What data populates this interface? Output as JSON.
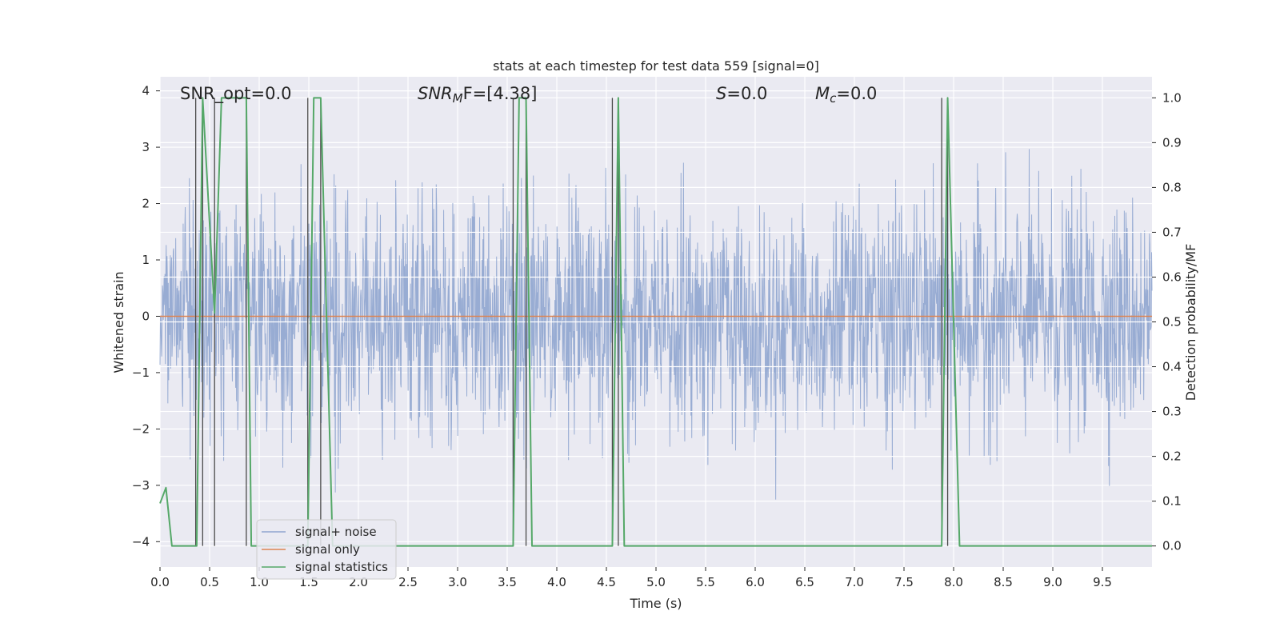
{
  "chart_data": {
    "type": "line",
    "title": "stats at each timestep for test data 559 [signal=0]",
    "xlabel": "Time (s)",
    "ylabel": "Whitened strain",
    "ylabel_right": "Detection probability/MF",
    "xlim": [
      0.0,
      10.0
    ],
    "ylim": [
      -4.45,
      4.25
    ],
    "ylim_right": [
      -0.047,
      1.047
    ],
    "x_ticks": [
      "0.0",
      "0.5",
      "1.0",
      "1.5",
      "2.0",
      "2.5",
      "3.0",
      "3.5",
      "4.0",
      "4.5",
      "5.0",
      "5.5",
      "6.0",
      "6.5",
      "7.0",
      "7.5",
      "8.0",
      "8.5",
      "9.0",
      "9.5"
    ],
    "y_ticks": [
      "4",
      "3",
      "2",
      "1",
      "0",
      "−1",
      "−2",
      "−3",
      "−4"
    ],
    "y_right_ticks": [
      "1.0",
      "0.9",
      "0.8",
      "0.7",
      "0.6",
      "0.5",
      "0.4",
      "0.3",
      "0.2",
      "0.1",
      "0.0"
    ],
    "grid": true,
    "legend_position": "lower-left",
    "annotations": {
      "snr_opt": "SNR_opt=0.0",
      "snr_mf_var": "SNR",
      "snr_mf_sub": "M",
      "snr_mf_rest": "F=[4.38]",
      "s_var": "S",
      "s_rest": "=0.0",
      "mc_var": "M",
      "mc_sub": "c",
      "mc_rest": "=0.0"
    },
    "series": [
      {
        "name": "signal+ noise",
        "color": "#8fa5cf",
        "noise_sigma": 1.0,
        "noise_range": [
          -4.1,
          3.3
        ]
      },
      {
        "name": "signal only",
        "color": "#dd8452",
        "value": 0.0
      },
      {
        "name": "signal statistics",
        "color": "#55a868",
        "axis": "right",
        "x": [
          0.0,
          0.06,
          0.12,
          0.37,
          0.43,
          0.55,
          0.62,
          0.87,
          0.92,
          1.49,
          1.55,
          1.62,
          1.74,
          3.56,
          3.62,
          3.69,
          3.75,
          4.56,
          4.62,
          4.68,
          7.88,
          7.94,
          8.06,
          10.0
        ],
        "y": [
          0.095,
          0.13,
          0.0,
          0.0,
          1.0,
          0.52,
          1.0,
          1.0,
          0.0,
          0.0,
          1.0,
          1.0,
          0.0,
          0.0,
          1.0,
          1.0,
          0.0,
          0.0,
          1.0,
          0.0,
          0.0,
          1.0,
          0.0,
          0.0
        ]
      }
    ],
    "vertical_lines": {
      "color": "#4a4a4a",
      "x": [
        0.36,
        0.43,
        0.55,
        0.87,
        1.49,
        1.62,
        3.56,
        3.69,
        4.56,
        4.62,
        7.88,
        7.94
      ],
      "y_range_right": [
        0.0,
        1.0
      ]
    }
  }
}
